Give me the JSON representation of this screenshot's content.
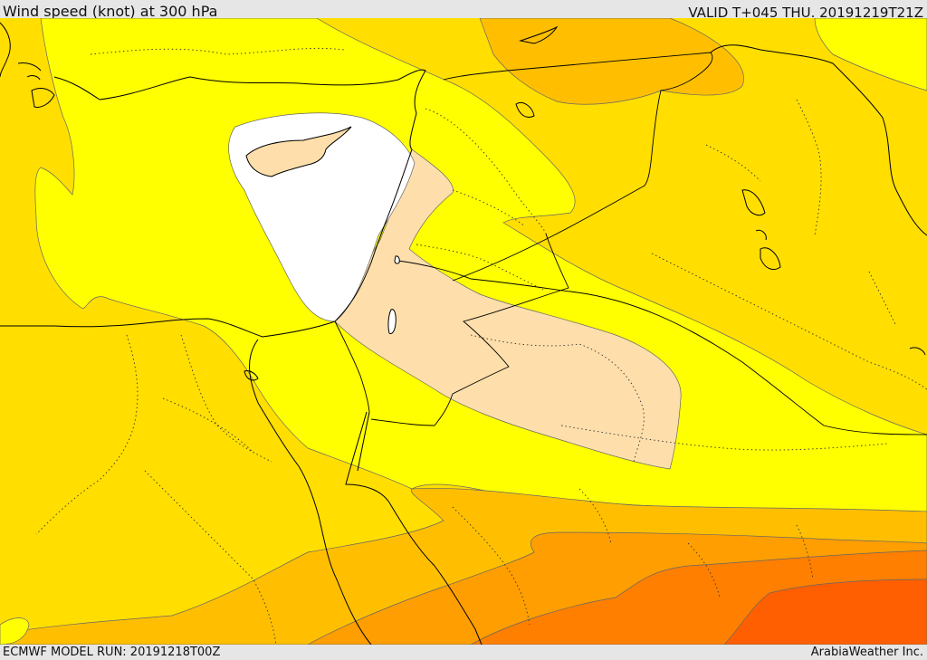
{
  "header": {
    "title": "Wind speed (knot) at 300 hPa",
    "valid": "VALID T+045 THU. 20191219T21Z"
  },
  "footer": {
    "model_run": "ECMWF MODEL RUN: 20191218T00Z",
    "credit": "ArabiaWeather Inc."
  },
  "colors": {
    "white_band": "#ffffff",
    "peach_band": "#fedfab",
    "yellow_band": "#ffff00",
    "gold_band": "#ffde00",
    "amber_band": "#ffbf00",
    "orange_band": "#ff9e00",
    "dark_orange_band": "#ff7f00",
    "red_orange_band": "#ff5f00",
    "coast": "#000000",
    "border": "#000000"
  }
}
